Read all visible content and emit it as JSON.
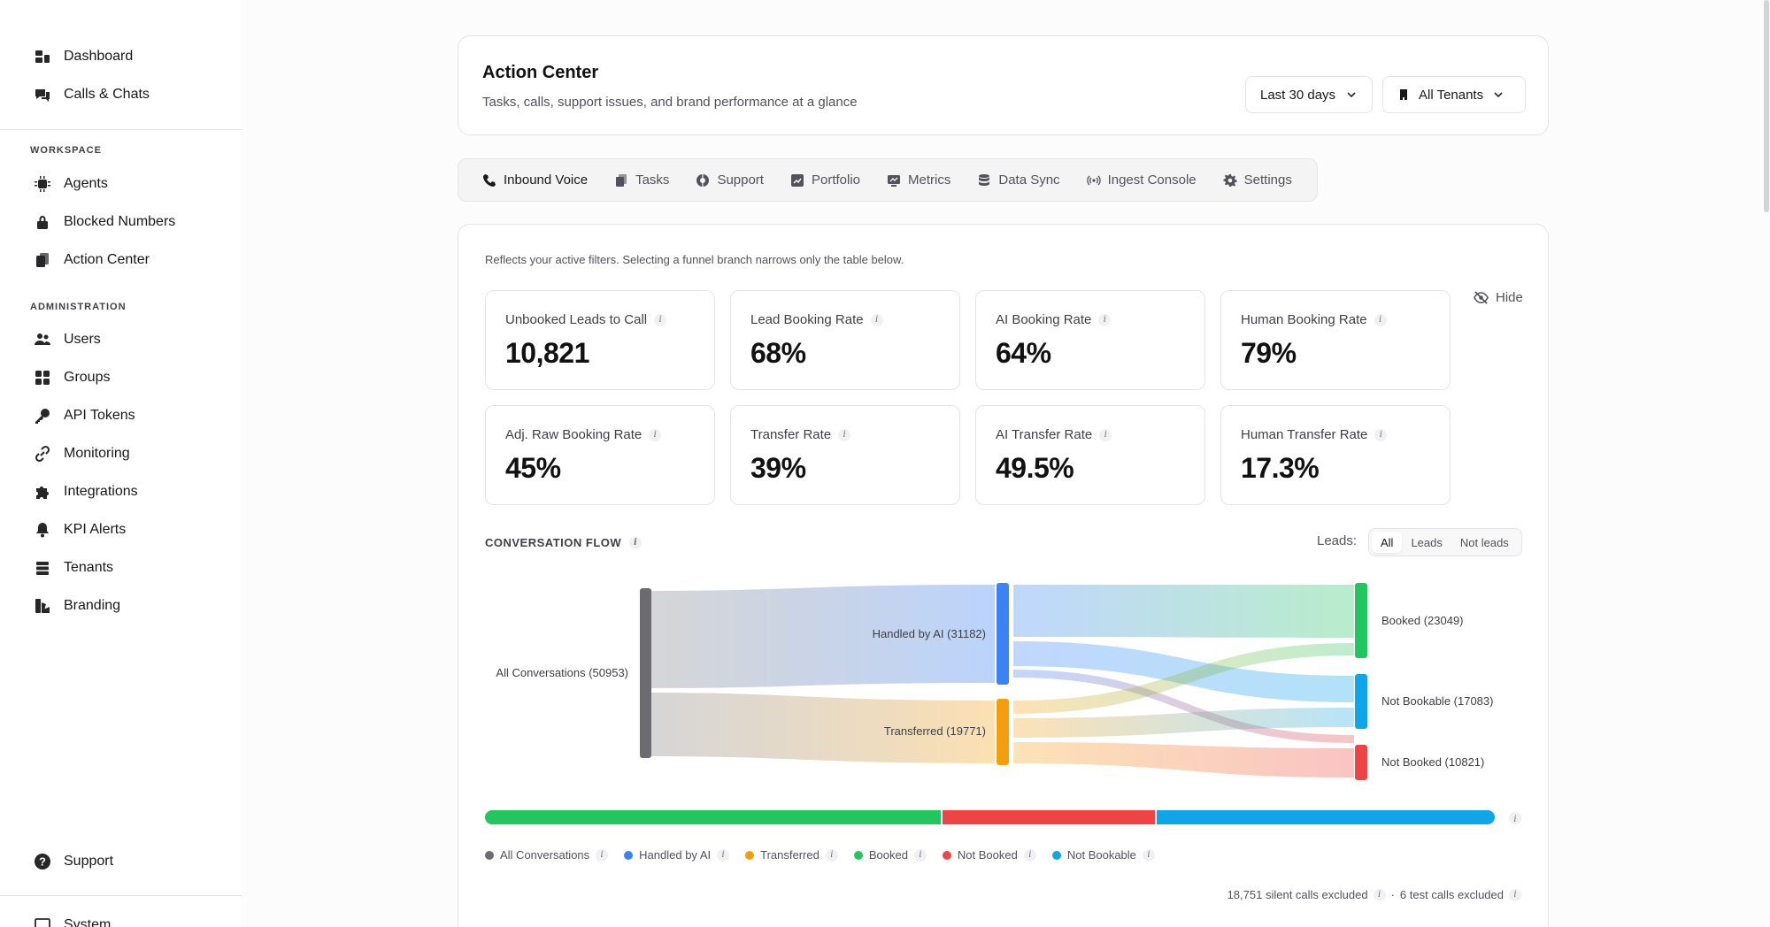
{
  "sidebar": {
    "top_items": [
      {
        "label": "Dashboard",
        "icon": "dashboard-icon"
      },
      {
        "label": "Calls & Chats",
        "icon": "chat-icon"
      }
    ],
    "workspace_label": "WORKSPACE",
    "workspace_items": [
      {
        "label": "Agents",
        "icon": "chip-icon"
      },
      {
        "label": "Blocked Numbers",
        "icon": "lock-icon"
      },
      {
        "label": "Action Center",
        "icon": "clipboard-icon"
      }
    ],
    "admin_label": "ADMINISTRATION",
    "admin_items": [
      {
        "label": "Users",
        "icon": "users-icon"
      },
      {
        "label": "Groups",
        "icon": "grid-icon"
      },
      {
        "label": "API Tokens",
        "icon": "key-icon"
      },
      {
        "label": "Monitoring",
        "icon": "link-icon"
      },
      {
        "label": "Integrations",
        "icon": "puzzle-icon"
      },
      {
        "label": "KPI Alerts",
        "icon": "bell-icon"
      },
      {
        "label": "Tenants",
        "icon": "database-icon"
      },
      {
        "label": "Branding",
        "icon": "palette-icon"
      }
    ],
    "support_label": "Support",
    "system_label": "System"
  },
  "header": {
    "title": "Action Center",
    "subtitle": "Tasks, calls, support issues, and brand performance at a glance",
    "range_select": "Last 30 days",
    "tenant_select": "All Tenants"
  },
  "tabs": [
    {
      "label": "Inbound Voice",
      "icon": "phone-icon",
      "active": true
    },
    {
      "label": "Tasks",
      "icon": "tasks-icon"
    },
    {
      "label": "Support",
      "icon": "lifebuoy-icon"
    },
    {
      "label": "Portfolio",
      "icon": "chart-icon"
    },
    {
      "label": "Metrics",
      "icon": "monitor-icon"
    },
    {
      "label": "Data Sync",
      "icon": "database-icon"
    },
    {
      "label": "Ingest Console",
      "icon": "broadcast-icon"
    },
    {
      "label": "Settings",
      "icon": "gear-icon"
    }
  ],
  "main": {
    "filter_note": "Reflects your active filters. Selecting a funnel branch narrows only the table below.",
    "hide_label": "Hide",
    "kpis": [
      {
        "label": "Unbooked Leads to Call",
        "value": "10,821"
      },
      {
        "label": "Lead Booking Rate",
        "value": "68%"
      },
      {
        "label": "AI Booking Rate",
        "value": "64%"
      },
      {
        "label": "Human Booking Rate",
        "value": "79%"
      },
      {
        "label": "Adj. Raw Booking Rate",
        "value": "45%"
      },
      {
        "label": "Transfer Rate",
        "value": "39%"
      },
      {
        "label": "AI Transfer Rate",
        "value": "49.5%"
      },
      {
        "label": "Human Transfer Rate",
        "value": "17.3%"
      }
    ],
    "flow_title": "CONVERSATION FLOW",
    "leads_label": "Leads:",
    "leads_options": [
      "All",
      "Leads",
      "Not leads"
    ],
    "footer_note_silent": "18,751 silent calls excluded",
    "footer_note_sep": "·",
    "footer_note_test": "6 test calls excluded"
  },
  "colors": {
    "all": "#6b6b70",
    "ai": "#3b82f6",
    "transferred": "#f59e0b",
    "booked": "#22c55e",
    "not_booked": "#ef4444",
    "not_bookable": "#0ea5e9"
  },
  "chart_data": {
    "type": "sankey",
    "nodes": [
      {
        "id": "all",
        "label": "All Conversations (50953)",
        "value": 50953
      },
      {
        "id": "ai",
        "label": "Handled by AI (31182)",
        "value": 31182
      },
      {
        "id": "transferred",
        "label": "Transferred (19771)",
        "value": 19771
      },
      {
        "id": "booked",
        "label": "Booked (23049)",
        "value": 23049
      },
      {
        "id": "not_bookable",
        "label": "Not Bookable (17083)",
        "value": 17083
      },
      {
        "id": "not_booked",
        "label": "Not Booked (10821)",
        "value": 10821
      }
    ],
    "links": [
      {
        "source": "all",
        "target": "ai"
      },
      {
        "source": "all",
        "target": "transferred"
      },
      {
        "source": "ai",
        "target": "booked"
      },
      {
        "source": "ai",
        "target": "not_bookable"
      },
      {
        "source": "ai",
        "target": "not_booked"
      },
      {
        "source": "transferred",
        "target": "booked"
      },
      {
        "source": "transferred",
        "target": "not_bookable"
      },
      {
        "source": "transferred",
        "target": "not_booked"
      }
    ],
    "bar": [
      {
        "name": "Booked",
        "value": 23049
      },
      {
        "name": "Not Booked",
        "value": 10821
      },
      {
        "name": "Not Bookable",
        "value": 17083
      }
    ],
    "legend": [
      "All Conversations",
      "Handled by AI",
      "Transferred",
      "Booked",
      "Not Booked",
      "Not Bookable"
    ]
  }
}
